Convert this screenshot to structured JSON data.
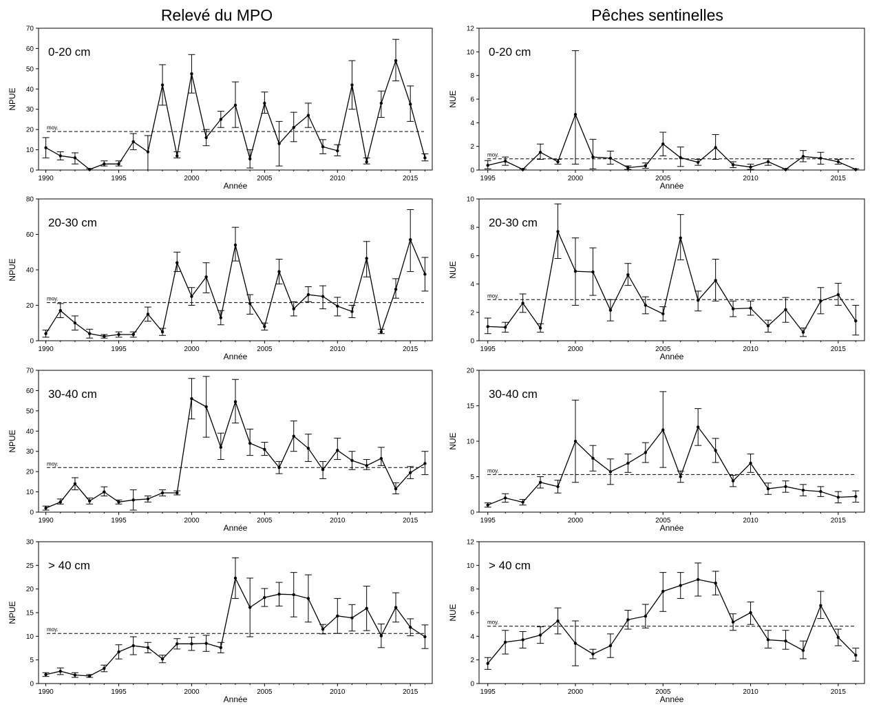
{
  "column_titles": [
    "Relevé du MPO",
    "Pêches sentinelles"
  ],
  "mean_label": "moy.",
  "chart_data": [
    {
      "type": "line",
      "column": 0,
      "row": 0,
      "panel_label": "0-20 cm",
      "xlabel": "Année",
      "ylabel": "NPUE",
      "xlim": [
        1989.5,
        2016.5
      ],
      "ylim": [
        0,
        70
      ],
      "xticks": [
        1990,
        1995,
        2000,
        2005,
        2010,
        2015
      ],
      "yticks": [
        0,
        10,
        20,
        30,
        40,
        50,
        60,
        70
      ],
      "mean": 19,
      "x": [
        1990,
        1991,
        1992,
        1993,
        1994,
        1995,
        1996,
        1997,
        1998,
        1999,
        2000,
        2001,
        2002,
        2003,
        2004,
        2005,
        2006,
        2007,
        2008,
        2009,
        2010,
        2011,
        2012,
        2013,
        2014,
        2015,
        2016
      ],
      "y": [
        11,
        7,
        6,
        0.3,
        3,
        3,
        14,
        9,
        42,
        7,
        47.5,
        16,
        25,
        32,
        5.5,
        33,
        13,
        21,
        27,
        11.5,
        9.5,
        42,
        4,
        33,
        54,
        32.5,
        6
      ],
      "lower": [
        6,
        5,
        3,
        0,
        2,
        2,
        10,
        0,
        32,
        6,
        38,
        12,
        21,
        21,
        1,
        28,
        2,
        14,
        21,
        8,
        7,
        30,
        3,
        26,
        44,
        24,
        4.5
      ],
      "upper": [
        16,
        9,
        8.5,
        0.6,
        4.5,
        4.5,
        18,
        17,
        52,
        9,
        57,
        20,
        29,
        43.5,
        10,
        38.5,
        24,
        28.5,
        33,
        15,
        12.5,
        54,
        6,
        39,
        64.5,
        41.5,
        8
      ]
    },
    {
      "type": "line",
      "column": 1,
      "row": 0,
      "panel_label": "0-20 cm",
      "xlabel": "Année",
      "ylabel": "NUE",
      "xlim": [
        1994.5,
        2016.5
      ],
      "ylim": [
        0,
        12
      ],
      "xticks": [
        1995,
        2000,
        2005,
        2010,
        2015
      ],
      "yticks": [
        0,
        2,
        4,
        6,
        8,
        10,
        12
      ],
      "mean": 0.95,
      "x": [
        1995,
        1996,
        1997,
        1998,
        1999,
        2000,
        2001,
        2002,
        2003,
        2004,
        2005,
        2006,
        2007,
        2008,
        2009,
        2010,
        2011,
        2012,
        2013,
        2014,
        2015,
        2016
      ],
      "y": [
        0.4,
        0.75,
        0.05,
        1.5,
        0.7,
        4.7,
        1.1,
        1.0,
        0.2,
        0.35,
        2.2,
        1.05,
        0.65,
        1.9,
        0.45,
        0.25,
        0.7,
        0.05,
        1.15,
        1.0,
        0.7,
        0.05
      ],
      "lower": [
        0.1,
        0.4,
        0,
        0.9,
        0.5,
        0.5,
        0.1,
        0.5,
        0.05,
        0.15,
        1.2,
        0.3,
        0.4,
        0.9,
        0.2,
        0.05,
        0.4,
        0,
        0.7,
        0.5,
        0.5,
        0
      ],
      "upper": [
        0.8,
        1.1,
        0.1,
        2.2,
        0.9,
        10.1,
        2.6,
        1.6,
        0.35,
        0.6,
        3.2,
        1.95,
        0.9,
        3.0,
        0.7,
        0.5,
        0.95,
        0.1,
        1.65,
        1.5,
        0.9,
        0.1
      ]
    },
    {
      "type": "line",
      "column": 0,
      "row": 1,
      "panel_label": "20-30 cm",
      "xlabel": "Année",
      "ylabel": "NPUE",
      "xlim": [
        1989.5,
        2016.5
      ],
      "ylim": [
        0,
        80
      ],
      "xticks": [
        1990,
        1995,
        2000,
        2005,
        2010,
        2015
      ],
      "yticks": [
        0,
        20,
        40,
        60,
        80
      ],
      "mean": 21.5,
      "x": [
        1990,
        1991,
        1992,
        1993,
        1994,
        1995,
        1996,
        1997,
        1998,
        1999,
        2000,
        2001,
        2002,
        2003,
        2004,
        2005,
        2006,
        2007,
        2008,
        2009,
        2010,
        2011,
        2012,
        2013,
        2014,
        2015,
        2016
      ],
      "y": [
        4,
        17,
        10,
        4,
        2.5,
        3.5,
        3.5,
        15,
        5,
        44,
        25,
        36,
        13,
        54,
        21,
        8,
        39,
        18,
        26,
        25,
        19.5,
        16.5,
        46.5,
        5,
        29,
        57,
        37.5
      ],
      "lower": [
        2,
        13,
        6,
        1.5,
        1.5,
        2,
        2,
        11,
        3,
        39,
        20,
        27,
        9,
        45,
        15,
        6,
        32,
        14,
        22,
        18,
        14,
        13,
        36,
        4,
        24,
        39,
        28
      ],
      "upper": [
        6,
        21,
        14,
        6.5,
        3.5,
        5,
        5,
        19,
        7,
        50,
        30,
        44,
        17,
        64,
        26,
        10,
        46,
        22,
        30.5,
        31,
        24.5,
        20,
        56,
        6.5,
        35,
        74,
        47
      ]
    },
    {
      "type": "line",
      "column": 1,
      "row": 1,
      "panel_label": "20-30 cm",
      "xlabel": "Année",
      "ylabel": "NUE",
      "xlim": [
        1994.5,
        2016.5
      ],
      "ylim": [
        0,
        10
      ],
      "xticks": [
        1995,
        2000,
        2005,
        2010,
        2015
      ],
      "yticks": [
        0,
        2,
        4,
        6,
        8,
        10
      ],
      "mean": 2.9,
      "x": [
        1995,
        1996,
        1997,
        1998,
        1999,
        2000,
        2001,
        2002,
        2003,
        2004,
        2005,
        2006,
        2007,
        2008,
        2009,
        2010,
        2011,
        2012,
        2013,
        2014,
        2015,
        2016
      ],
      "y": [
        1.0,
        0.95,
        2.65,
        0.9,
        7.7,
        4.9,
        4.85,
        2.15,
        4.65,
        2.5,
        1.9,
        7.25,
        2.85,
        4.25,
        2.25,
        2.3,
        1.05,
        2.2,
        0.6,
        2.8,
        3.25,
        1.4
      ],
      "lower": [
        0.5,
        0.6,
        2.0,
        0.6,
        5.8,
        2.5,
        3.2,
        1.4,
        3.9,
        1.9,
        1.4,
        5.7,
        2.1,
        2.8,
        1.7,
        1.8,
        0.6,
        1.3,
        0.3,
        1.9,
        2.5,
        0.4
      ],
      "upper": [
        1.6,
        1.3,
        3.3,
        1.2,
        9.65,
        7.25,
        6.55,
        2.9,
        5.45,
        3.1,
        2.4,
        8.9,
        3.5,
        5.75,
        2.8,
        2.8,
        1.45,
        3.05,
        0.9,
        3.75,
        4.05,
        2.5
      ]
    },
    {
      "type": "line",
      "column": 0,
      "row": 2,
      "panel_label": "30-40 cm",
      "xlabel": "Année",
      "ylabel": "NPUE",
      "xlim": [
        1989.5,
        2016.5
      ],
      "ylim": [
        0,
        70
      ],
      "xticks": [
        1990,
        1995,
        2000,
        2005,
        2010,
        2015
      ],
      "yticks": [
        0,
        10,
        20,
        30,
        40,
        50,
        60,
        70
      ],
      "mean": 22,
      "x": [
        1990,
        1991,
        1992,
        1993,
        1994,
        1995,
        1996,
        1997,
        1998,
        1999,
        2000,
        2001,
        2002,
        2003,
        2004,
        2005,
        2006,
        2007,
        2008,
        2009,
        2010,
        2011,
        2012,
        2013,
        2014,
        2015,
        2016
      ],
      "y": [
        2,
        5,
        14,
        5.5,
        10,
        5,
        6,
        6.5,
        9.5,
        9.5,
        56,
        52,
        32,
        54.5,
        34,
        31,
        22,
        37.5,
        31.5,
        21,
        30.5,
        25.5,
        23,
        26.5,
        11.5,
        19.5,
        24
      ],
      "lower": [
        1,
        4,
        11,
        4,
        8,
        4,
        1,
        5,
        8,
        8.5,
        46,
        37,
        26,
        44,
        28,
        28,
        19,
        30,
        25,
        16.5,
        26,
        21,
        21,
        23,
        9,
        16.5,
        18.5
      ],
      "upper": [
        3,
        6.5,
        17,
        7,
        12.5,
        6,
        11,
        8,
        11,
        10.5,
        66,
        67,
        39,
        65.5,
        41,
        34.5,
        25,
        45,
        38.5,
        25,
        36.5,
        30,
        26,
        32,
        14.5,
        22.5,
        30
      ]
    },
    {
      "type": "line",
      "column": 1,
      "row": 2,
      "panel_label": "30-40 cm",
      "xlabel": "Année",
      "ylabel": "NUE",
      "xlim": [
        1994.5,
        2016.5
      ],
      "ylim": [
        0,
        20
      ],
      "xticks": [
        1995,
        2000,
        2005,
        2010,
        2015
      ],
      "yticks": [
        0,
        5,
        10,
        15,
        20
      ],
      "mean": 5.3,
      "x": [
        1995,
        1996,
        1997,
        1998,
        1999,
        2000,
        2001,
        2002,
        2003,
        2004,
        2005,
        2006,
        2007,
        2008,
        2009,
        2010,
        2011,
        2012,
        2013,
        2014,
        2015,
        2016
      ],
      "y": [
        1.0,
        2.0,
        1.4,
        4.2,
        3.6,
        10.0,
        7.6,
        5.7,
        6.9,
        8.4,
        11.6,
        5.0,
        12.0,
        8.7,
        4.4,
        6.9,
        3.3,
        3.6,
        3.1,
        2.9,
        2.1,
        2.2
      ],
      "lower": [
        0.7,
        1.4,
        1.0,
        3.4,
        2.7,
        4.2,
        5.8,
        3.9,
        5.6,
        7.0,
        6.3,
        4.2,
        9.4,
        7.0,
        3.6,
        5.6,
        2.5,
        2.8,
        2.3,
        2.2,
        1.3,
        1.4
      ],
      "upper": [
        1.3,
        2.6,
        1.8,
        5.0,
        4.5,
        15.8,
        9.4,
        7.5,
        8.2,
        9.8,
        17.0,
        5.8,
        14.6,
        10.4,
        5.2,
        8.2,
        4.1,
        4.4,
        3.9,
        3.6,
        2.9,
        3.0
      ]
    },
    {
      "type": "line",
      "column": 0,
      "row": 3,
      "panel_label": "> 40 cm",
      "xlabel": "Année",
      "ylabel": "NPUE",
      "xlim": [
        1989.5,
        2016.5
      ],
      "ylim": [
        0,
        30
      ],
      "xticks": [
        1990,
        1995,
        2000,
        2005,
        2010,
        2015
      ],
      "yticks": [
        0,
        5,
        10,
        15,
        20,
        25,
        30
      ],
      "mean": 10.6,
      "x": [
        1990,
        1991,
        1992,
        1993,
        1994,
        1995,
        1996,
        1997,
        1998,
        1999,
        2000,
        2001,
        2002,
        2003,
        2004,
        2005,
        2006,
        2007,
        2008,
        2009,
        2010,
        2011,
        2012,
        2013,
        2014,
        2015,
        2016
      ],
      "y": [
        1.9,
        2.6,
        1.8,
        1.6,
        3.2,
        6.7,
        8.0,
        7.6,
        5.2,
        8.4,
        8.4,
        8.5,
        7.6,
        22.3,
        16.1,
        18.2,
        18.9,
        18.8,
        18.0,
        11.5,
        14.3,
        13.9,
        15.9,
        10.1,
        16.1,
        11.9,
        9.9
      ],
      "lower": [
        1.5,
        1.9,
        1.3,
        1.3,
        2.5,
        5.2,
        6.1,
        6.5,
        4.4,
        7.3,
        7.0,
        6.8,
        6.5,
        18.0,
        9.9,
        16.3,
        16.4,
        14.1,
        13.0,
        10.5,
        10.6,
        11.1,
        11.2,
        7.6,
        13.0,
        10.1,
        7.4
      ],
      "upper": [
        2.3,
        3.3,
        2.3,
        1.9,
        3.9,
        8.2,
        9.9,
        8.7,
        6.0,
        9.5,
        9.8,
        10.2,
        8.7,
        26.6,
        22.3,
        20.1,
        21.4,
        23.5,
        23.0,
        12.5,
        18.0,
        16.7,
        20.6,
        12.6,
        19.2,
        13.7,
        12.4
      ]
    },
    {
      "type": "line",
      "column": 1,
      "row": 3,
      "panel_label": "> 40 cm",
      "xlabel": "Année",
      "ylabel": "NUE",
      "xlim": [
        1994.5,
        2016.5
      ],
      "ylim": [
        0,
        12
      ],
      "xticks": [
        1995,
        2000,
        2005,
        2010,
        2015
      ],
      "yticks": [
        0,
        2,
        4,
        6,
        8,
        10,
        12
      ],
      "mean": 4.85,
      "x": [
        1995,
        1996,
        1997,
        1998,
        1999,
        2000,
        2001,
        2002,
        2003,
        2004,
        2005,
        2006,
        2007,
        2008,
        2009,
        2010,
        2011,
        2012,
        2013,
        2014,
        2015,
        2016
      ],
      "y": [
        1.7,
        3.5,
        3.7,
        4.1,
        5.3,
        3.4,
        2.5,
        3.2,
        5.4,
        5.7,
        7.8,
        8.3,
        8.8,
        8.5,
        5.2,
        6.0,
        3.7,
        3.6,
        2.8,
        6.6,
        3.9,
        2.4
      ],
      "lower": [
        1.2,
        2.5,
        3.0,
        3.4,
        4.2,
        1.5,
        2.1,
        2.2,
        4.6,
        4.7,
        6.1,
        7.2,
        7.4,
        7.5,
        4.5,
        5.0,
        3.0,
        2.9,
        2.1,
        5.5,
        3.2,
        1.9
      ],
      "upper": [
        2.2,
        4.5,
        4.4,
        4.8,
        6.4,
        5.3,
        2.9,
        4.2,
        6.2,
        6.7,
        9.4,
        9.4,
        10.2,
        9.5,
        5.9,
        6.9,
        4.5,
        4.5,
        3.6,
        7.8,
        4.6,
        3.0
      ]
    }
  ]
}
